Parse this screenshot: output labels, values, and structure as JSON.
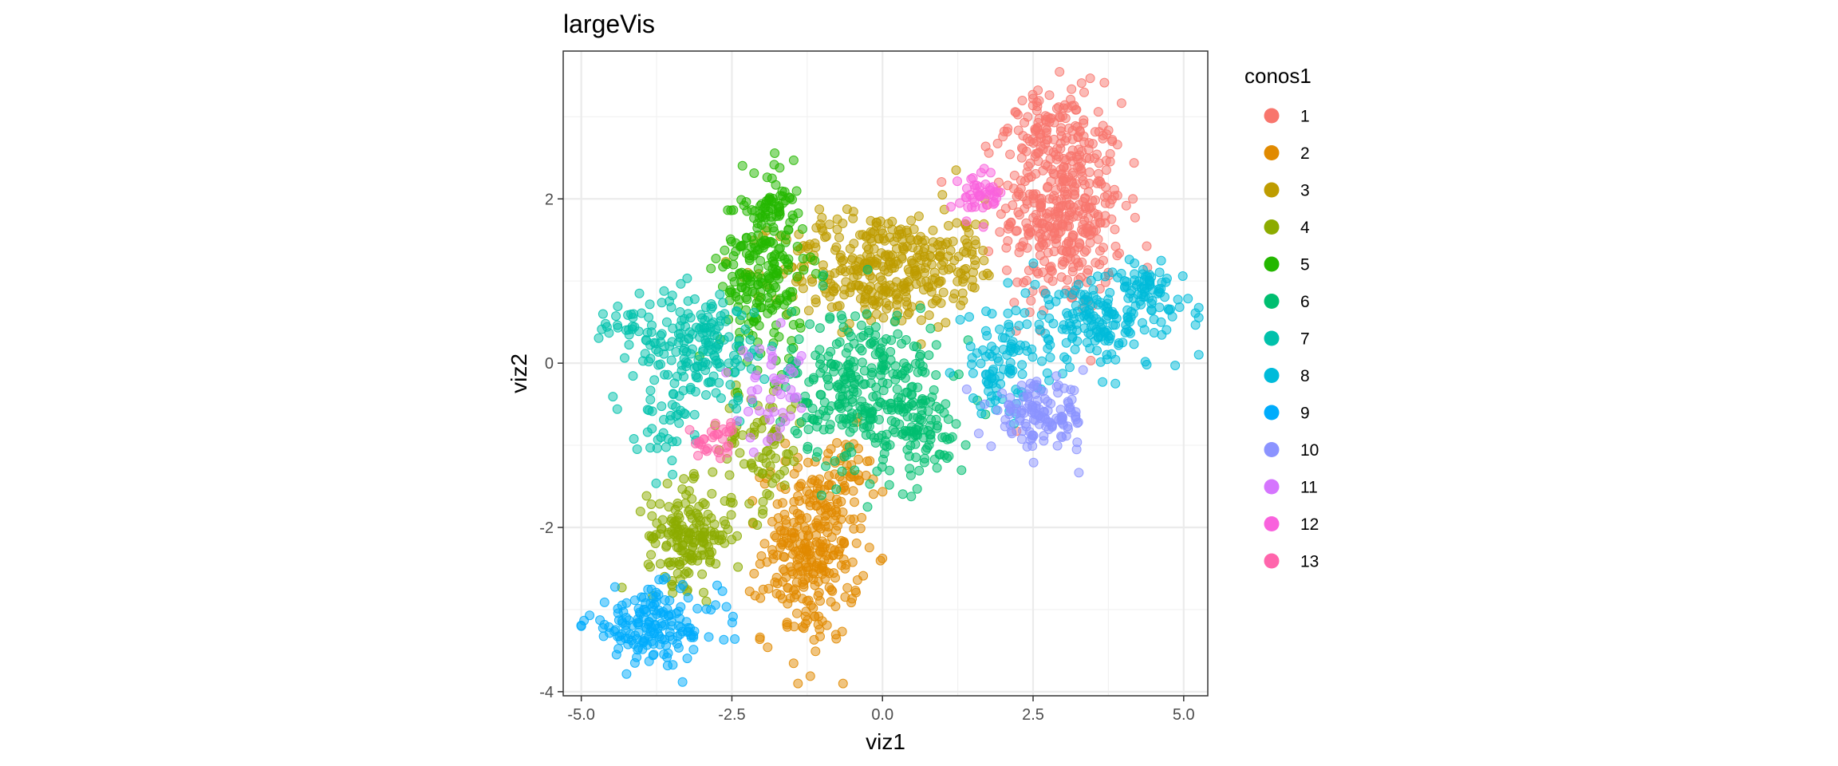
{
  "chart_data": {
    "type": "scatter",
    "title": "largeVis",
    "xlabel": "viz1",
    "ylabel": "viz2",
    "xlim": [
      -5.3,
      5.4
    ],
    "ylim": [
      -4.05,
      3.8
    ],
    "x_ticks": [
      -5.0,
      -2.5,
      0.0,
      2.5,
      5.0
    ],
    "x_tick_labels": [
      "-5.0",
      "-2.5",
      "0.0",
      "2.5",
      "5.0"
    ],
    "y_ticks": [
      -4,
      -2,
      0,
      2
    ],
    "y_tick_labels": [
      "-4",
      "-2",
      "0",
      "2"
    ],
    "grid": true,
    "point_alpha": 0.5,
    "legend": {
      "title": "conos1",
      "position": "right"
    },
    "series": [
      {
        "name": "1",
        "color": "#F8766D",
        "clusters": [
          {
            "cx": 3.0,
            "cy": 1.9,
            "sx": 0.5,
            "sy": 0.65,
            "n": 420
          },
          {
            "cx": 2.7,
            "cy": 2.9,
            "sx": 0.3,
            "sy": 0.2,
            "n": 60
          }
        ]
      },
      {
        "name": "2",
        "color": "#E18A00",
        "clusters": [
          {
            "cx": -1.2,
            "cy": -2.3,
            "sx": 0.4,
            "sy": 0.55,
            "n": 300
          },
          {
            "cx": -0.6,
            "cy": -1.4,
            "sx": 0.2,
            "sy": 0.3,
            "n": 40
          }
        ]
      },
      {
        "name": "3",
        "color": "#BE9C00",
        "clusters": [
          {
            "cx": -0.1,
            "cy": 1.15,
            "sx": 0.8,
            "sy": 0.35,
            "n": 320
          },
          {
            "cx": 1.2,
            "cy": 1.4,
            "sx": 0.35,
            "sy": 0.3,
            "n": 60
          }
        ]
      },
      {
        "name": "4",
        "color": "#8CAB00",
        "clusters": [
          {
            "cx": -3.2,
            "cy": -2.1,
            "sx": 0.35,
            "sy": 0.3,
            "n": 180
          },
          {
            "cx": -2.0,
            "cy": -1.0,
            "sx": 0.35,
            "sy": 0.4,
            "n": 80
          }
        ]
      },
      {
        "name": "5",
        "color": "#24B700",
        "clusters": [
          {
            "cx": -2.0,
            "cy": 1.1,
            "sx": 0.35,
            "sy": 0.55,
            "n": 220
          },
          {
            "cx": -1.8,
            "cy": 1.9,
            "sx": 0.15,
            "sy": 0.2,
            "n": 40
          }
        ]
      },
      {
        "name": "6",
        "color": "#00BE70",
        "clusters": [
          {
            "cx": -0.3,
            "cy": -0.3,
            "sx": 0.6,
            "sy": 0.5,
            "n": 300
          },
          {
            "cx": 0.6,
            "cy": -0.8,
            "sx": 0.4,
            "sy": 0.3,
            "n": 80
          }
        ]
      },
      {
        "name": "7",
        "color": "#00C1AB",
        "clusters": [
          {
            "cx": -3.0,
            "cy": 0.2,
            "sx": 0.55,
            "sy": 0.35,
            "n": 180
          },
          {
            "cx": -4.3,
            "cy": 0.5,
            "sx": 0.2,
            "sy": 0.12,
            "n": 25
          },
          {
            "cx": -3.6,
            "cy": -0.7,
            "sx": 0.25,
            "sy": 0.3,
            "n": 40
          }
        ]
      },
      {
        "name": "8",
        "color": "#00BBDA",
        "clusters": [
          {
            "cx": 3.6,
            "cy": 0.5,
            "sx": 0.7,
            "sy": 0.3,
            "n": 180
          },
          {
            "cx": 2.0,
            "cy": 0.0,
            "sx": 0.35,
            "sy": 0.3,
            "n": 90
          },
          {
            "cx": 4.4,
            "cy": 0.9,
            "sx": 0.3,
            "sy": 0.2,
            "n": 50
          }
        ]
      },
      {
        "name": "9",
        "color": "#00ACFC",
        "clusters": [
          {
            "cx": -3.8,
            "cy": -3.2,
            "sx": 0.55,
            "sy": 0.22,
            "n": 170
          }
        ]
      },
      {
        "name": "10",
        "color": "#8B93FF",
        "clusters": [
          {
            "cx": 2.6,
            "cy": -0.65,
            "sx": 0.4,
            "sy": 0.2,
            "n": 130
          }
        ]
      },
      {
        "name": "11",
        "color": "#D575FE",
        "clusters": [
          {
            "cx": -1.8,
            "cy": -0.4,
            "sx": 0.3,
            "sy": 0.3,
            "n": 45
          }
        ]
      },
      {
        "name": "12",
        "color": "#F962DD",
        "clusters": [
          {
            "cx": 1.6,
            "cy": 2.05,
            "sx": 0.2,
            "sy": 0.15,
            "n": 45
          }
        ]
      },
      {
        "name": "13",
        "color": "#FF65AC",
        "clusters": [
          {
            "cx": -2.7,
            "cy": -0.95,
            "sx": 0.2,
            "sy": 0.12,
            "n": 30
          }
        ]
      }
    ]
  }
}
